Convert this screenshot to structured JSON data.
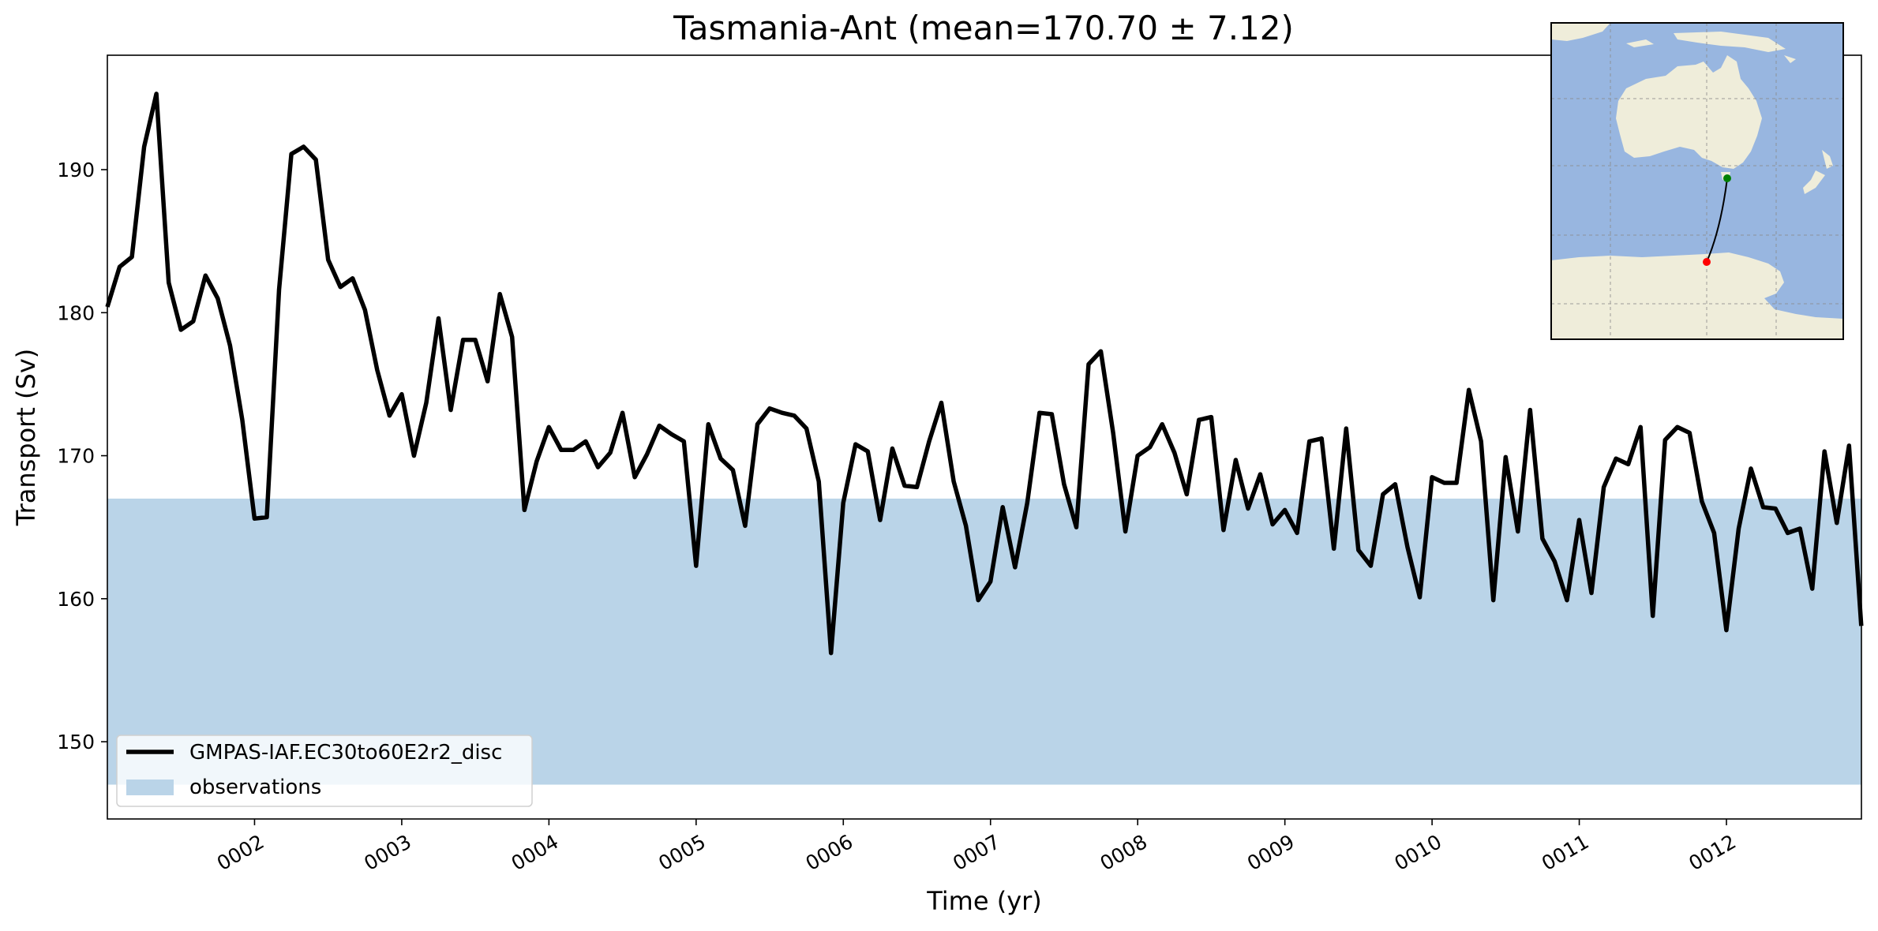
{
  "chart_data": {
    "type": "line",
    "title": "Tasmania-Ant (mean=170.70 ± 7.12)",
    "xlabel": "Time (yr)",
    "ylabel": "Transport (Sv)",
    "xlim": [
      1.0,
      12.917
    ],
    "ylim": [
      144.6,
      198.0
    ],
    "xticks": [
      2,
      3,
      4,
      5,
      6,
      7,
      8,
      9,
      10,
      11,
      12
    ],
    "xtick_labels": [
      "0002",
      "0003",
      "0004",
      "0005",
      "0006",
      "0007",
      "0008",
      "0009",
      "0010",
      "0011",
      "0012"
    ],
    "yticks": [
      150,
      160,
      170,
      180,
      190
    ],
    "ytick_labels": [
      "150",
      "160",
      "170",
      "180",
      "190"
    ],
    "grid": false,
    "legend_position": "bottom-left",
    "observations_band": {
      "name": "observations",
      "ymin": 147.0,
      "ymax": 167.0,
      "color": "#bad4e8"
    },
    "series": [
      {
        "name": "GMPAS-IAF.EC30to60E2r2_disc",
        "color": "#000000",
        "x_start": 1.0,
        "x_step": 0.08333,
        "values": [
          180.4,
          183.2,
          183.9,
          191.6,
          195.3,
          182.1,
          178.8,
          179.4,
          182.6,
          181.0,
          177.7,
          172.5,
          165.6,
          165.7,
          181.6,
          191.1,
          191.6,
          190.7,
          183.7,
          181.8,
          182.4,
          180.2,
          176.0,
          172.8,
          174.3,
          170.0,
          173.7,
          179.6,
          173.2,
          178.1,
          178.1,
          175.2,
          181.3,
          178.3,
          166.2,
          169.6,
          172.0,
          170.4,
          170.4,
          171.0,
          169.2,
          170.2,
          173.0,
          168.5,
          170.1,
          172.1,
          171.5,
          171.0,
          162.3,
          172.2,
          169.8,
          169.0,
          165.1,
          172.2,
          173.3,
          173.0,
          172.8,
          171.9,
          168.2,
          156.2,
          166.7,
          170.8,
          170.3,
          165.5,
          170.5,
          167.9,
          167.8,
          171.0,
          173.7,
          168.2,
          165.1,
          159.9,
          161.2,
          166.4,
          162.2,
          166.7,
          173.0,
          172.9,
          168.0,
          165.0,
          176.4,
          177.3,
          171.6,
          164.7,
          170.0,
          170.6,
          172.2,
          170.2,
          167.3,
          172.5,
          172.7,
          164.8,
          169.7,
          166.3,
          168.7,
          165.2,
          166.2,
          164.6,
          171.0,
          171.2,
          163.5,
          171.9,
          163.4,
          162.3,
          167.3,
          168.0,
          163.6,
          160.1,
          168.5,
          168.1,
          168.1,
          174.6,
          171.0,
          159.9,
          169.9,
          164.7,
          173.2,
          164.2,
          162.6,
          159.9,
          165.5,
          160.4,
          167.8,
          169.8,
          169.4,
          172.0,
          158.8,
          171.1,
          172.0,
          171.6,
          166.8,
          164.6,
          157.8,
          164.9,
          169.1,
          166.4,
          166.3,
          164.6,
          164.9,
          160.7,
          170.3,
          165.3,
          170.7,
          158.1
        ]
      }
    ],
    "inset_map": {
      "ocean_color": "#98b6e0",
      "land_color": "#efedda",
      "transect_start_color": "#ff0000",
      "transect_end_color": "#008000"
    }
  }
}
